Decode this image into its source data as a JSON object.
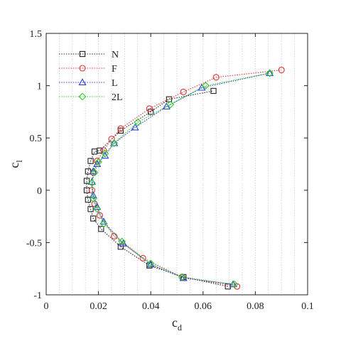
{
  "chart_data": {
    "type": "line",
    "xlabel": "c",
    "xlabel_sub": "d",
    "ylabel": "c",
    "ylabel_sub": "l",
    "xlim": [
      0,
      0.1
    ],
    "ylim": [
      -1,
      1.5
    ],
    "xticks": [
      0,
      0.02,
      0.04,
      0.06,
      0.08,
      0.1
    ],
    "xtick_labels": [
      "0",
      "0.02",
      "0.04",
      "0.06",
      "0.08",
      "0.1"
    ],
    "yticks": [
      -1,
      -0.5,
      0,
      0.5,
      1,
      1.5
    ],
    "ytick_labels": [
      "-1",
      "-0.5",
      "0",
      "0.5",
      "1",
      "1.5"
    ],
    "grid": "vertical dotted",
    "legend_position": "top-left",
    "series": [
      {
        "name": "N",
        "color": "#222222",
        "marker": "square",
        "x": [
          0.0695,
          0.0525,
          0.0395,
          0.0285,
          0.021,
          0.018,
          0.017,
          0.016,
          0.0155,
          0.0155,
          0.016,
          0.017,
          0.0185,
          0.0205,
          0.0285,
          0.04,
          0.047,
          0.064
        ],
        "y": [
          -0.92,
          -0.83,
          -0.72,
          -0.54,
          -0.37,
          -0.27,
          -0.18,
          -0.09,
          0.0,
          0.09,
          0.18,
          0.28,
          0.37,
          0.38,
          0.57,
          0.75,
          0.87,
          0.95
        ]
      },
      {
        "name": "F",
        "color": "#e03030",
        "marker": "circle",
        "x": [
          0.073,
          0.052,
          0.037,
          0.026,
          0.0205,
          0.0185,
          0.0175,
          0.018,
          0.0195,
          0.022,
          0.025,
          0.0285,
          0.0395,
          0.0525,
          0.065,
          0.09
        ],
        "y": [
          -0.92,
          -0.83,
          -0.65,
          -0.44,
          -0.24,
          -0.13,
          0.0,
          0.17,
          0.28,
          0.38,
          0.49,
          0.59,
          0.78,
          0.94,
          1.08,
          1.15
        ]
      },
      {
        "name": "L",
        "color": "#2a3fd8",
        "marker": "triangle",
        "x": [
          0.0715,
          0.0525,
          0.04,
          0.0295,
          0.022,
          0.0195,
          0.018,
          0.0175,
          0.018,
          0.0195,
          0.0225,
          0.026,
          0.034,
          0.046,
          0.0595,
          0.0855
        ],
        "y": [
          -0.9,
          -0.84,
          -0.71,
          -0.51,
          -0.3,
          -0.16,
          -0.05,
          0.08,
          0.18,
          0.25,
          0.33,
          0.45,
          0.6,
          0.8,
          0.98,
          1.12
        ]
      },
      {
        "name": "2L",
        "color": "#2ecc2e",
        "marker": "diamond",
        "x": [
          0.072,
          0.052,
          0.04,
          0.029,
          0.022,
          0.0195,
          0.018,
          0.0175,
          0.0185,
          0.02,
          0.0225,
          0.026,
          0.035,
          0.0475,
          0.061,
          0.0855
        ],
        "y": [
          -0.9,
          -0.83,
          -0.7,
          -0.49,
          -0.32,
          -0.18,
          -0.08,
          0.07,
          0.17,
          0.27,
          0.35,
          0.45,
          0.65,
          0.82,
          1.0,
          1.12
        ]
      }
    ]
  }
}
